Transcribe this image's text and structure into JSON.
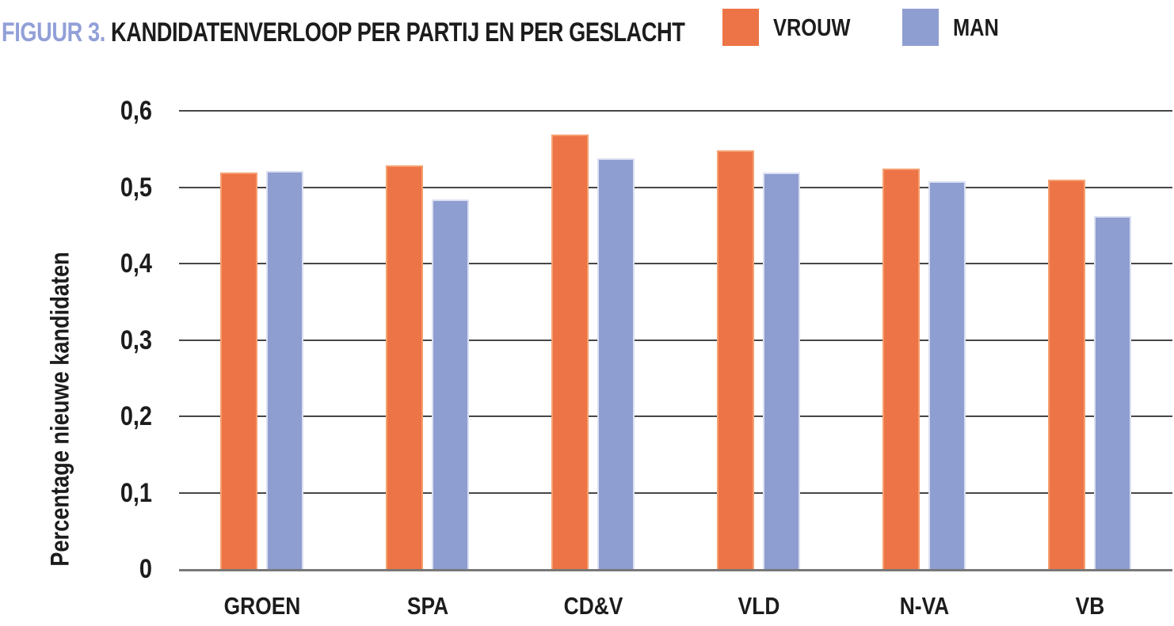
{
  "title": {
    "prefix": "FIGUUR 3.",
    "text": " KANDIDATENVERLOOP PER PARTIJ EN PER GESLACHT",
    "accent_color": "#92A0D8",
    "text_color": "#1c1c1c"
  },
  "chart_data": {
    "type": "bar",
    "title": "FIGUUR 3. KANDIDATENVERLOOP PER PARTIJ EN PER GESLACHT",
    "categories": [
      "GROEN",
      "SPA",
      "CD&V",
      "VLD",
      "N-VA",
      "VB"
    ],
    "series": [
      {
        "name": "VROUW",
        "color": "#ED7446",
        "edge_color": "#F5A071",
        "values": [
          0.519,
          0.529,
          0.569,
          0.548,
          0.524,
          0.51
        ]
      },
      {
        "name": "MAN",
        "color": "#8F9ED0",
        "edge_color": "#DCE0F2",
        "values": [
          0.521,
          0.484,
          0.538,
          0.519,
          0.508,
          0.462
        ]
      }
    ],
    "xlabel": "",
    "ylabel": "Percentage nieuwe kandidaten",
    "ylim": [
      0,
      0.6
    ],
    "yticks": [
      {
        "v": 0.0,
        "label": "0"
      },
      {
        "v": 0.1,
        "label": "0,1"
      },
      {
        "v": 0.2,
        "label": "0,2"
      },
      {
        "v": 0.3,
        "label": "0,3"
      },
      {
        "v": 0.4,
        "label": "0,4"
      },
      {
        "v": 0.5,
        "label": "0,5"
      },
      {
        "v": 0.6,
        "label": "0,6"
      }
    ],
    "grid": true,
    "legend_position": "top-right"
  }
}
